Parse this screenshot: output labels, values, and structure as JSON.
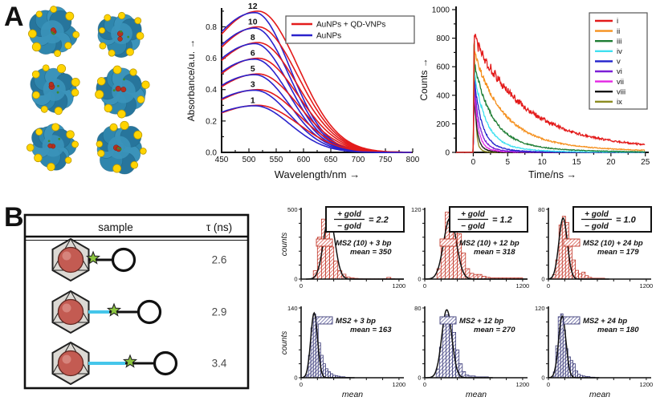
{
  "panels": {
    "a": "A",
    "b": "B"
  },
  "chart_data": [
    {
      "id": "absorbance",
      "type": "line",
      "title": "",
      "xlabel": "Wavelength/nm →",
      "ylabel": "Absorbance/a.u. →",
      "xlim": [
        450,
        800
      ],
      "ylim": [
        0,
        0.92
      ],
      "xticks": [
        450,
        500,
        550,
        600,
        650,
        700,
        750,
        800
      ],
      "yticks": [
        0,
        0.2,
        0.4,
        0.6,
        0.8
      ],
      "ytick_labels": [
        "0.0",
        "0.2",
        "0.4",
        "0.6",
        "0.8"
      ],
      "legend_position": "top-right",
      "legend": [
        {
          "label": "AuNPs + QD-VNPs",
          "color": "#e31b1b"
        },
        {
          "label": "AuNPs",
          "color": "#2a22cc"
        }
      ],
      "peak_wavelength": 515,
      "pairs": [
        {
          "label": "12",
          "peak_absorbance": 0.9
        },
        {
          "label": "10",
          "peak_absorbance": 0.8
        },
        {
          "label": "8",
          "peak_absorbance": 0.7
        },
        {
          "label": "6",
          "peak_absorbance": 0.6
        },
        {
          "label": "5",
          "peak_absorbance": 0.5
        },
        {
          "label": "3",
          "peak_absorbance": 0.4
        },
        {
          "label": "1",
          "peak_absorbance": 0.3
        }
      ]
    },
    {
      "id": "decay",
      "type": "line",
      "title": "",
      "xlabel": "Time/ns →",
      "ylabel": "Counts →",
      "xlim": [
        -2.5,
        25
      ],
      "ylim": [
        0,
        1000
      ],
      "xticks": [
        0,
        5,
        10,
        15,
        20,
        25
      ],
      "yticks": [
        0,
        200,
        400,
        600,
        800,
        1000
      ],
      "legend_position": "right",
      "series": [
        {
          "name": "i",
          "color": "#e31a1a",
          "peak_counts": 810,
          "tau_ns": 6.8
        },
        {
          "name": "ii",
          "color": "#f5901e",
          "peak_counts": 700,
          "tau_ns": 4.0
        },
        {
          "name": "iii",
          "color": "#1d7d33",
          "peak_counts": 635,
          "tau_ns": 2.5
        },
        {
          "name": "iv",
          "color": "#3fe0f0",
          "peak_counts": 575,
          "tau_ns": 1.6
        },
        {
          "name": "v",
          "color": "#2222cc",
          "peak_counts": 525,
          "tau_ns": 1.05
        },
        {
          "name": "vi",
          "color": "#7b1fd6",
          "peak_counts": 485,
          "tau_ns": 0.75
        },
        {
          "name": "vii",
          "color": "#e326e3",
          "peak_counts": 450,
          "tau_ns": 0.55
        },
        {
          "name": "viii",
          "color": "#151515",
          "peak_counts": 425,
          "tau_ns": 0.4
        },
        {
          "name": "ix",
          "color": "#8b8b1f",
          "peak_counts": 1000,
          "tau_ns": 0.16
        }
      ]
    },
    {
      "id": "hist-ms2-10-3bp",
      "type": "histogram",
      "label": "MS2 (10) + 3 bp",
      "mean_label": "mean = 350",
      "ratio": {
        "numerator": "+ gold",
        "denominator": "− gold",
        "value": "= 2.2"
      },
      "color": "#d6554a",
      "edge": "#c13a2c",
      "ylabel": "counts",
      "xlabel": "",
      "ymax": 500,
      "xlim": [
        0,
        1260
      ],
      "xtick_step": 200,
      "xtick_labels": [
        "0",
        "1200"
      ],
      "bin_start": 150,
      "bin_width": 50,
      "bin_counts": [
        60,
        300,
        430,
        420,
        230,
        130,
        60,
        35,
        15,
        8,
        5,
        3,
        2,
        2,
        2,
        2,
        2,
        3,
        12,
        3,
        0
      ],
      "fit": {
        "amp": 450,
        "mu": 345,
        "sigma": 70
      }
    },
    {
      "id": "hist-ms2-10-12bp",
      "type": "histogram",
      "label": "MS2 (10) + 12 bp",
      "mean_label": "mean = 318",
      "ratio": {
        "numerator": "+ gold",
        "denominator": "− gold",
        "value": "= 1.2"
      },
      "color": "#d6554a",
      "edge": "#c13a2c",
      "ylabel": "",
      "xlabel": "",
      "ymax": 120,
      "xlim": [
        0,
        1260
      ],
      "xtick_step": 200,
      "xtick_labels": [
        "0",
        "1200"
      ],
      "bin_start": 100,
      "bin_width": 50,
      "bin_counts": [
        0,
        18,
        60,
        115,
        95,
        88,
        78,
        45,
        18,
        10,
        8,
        8,
        5,
        3,
        2,
        2,
        2,
        2,
        2,
        2,
        2,
        2
      ],
      "fit": {
        "amp": 105,
        "mu": 310,
        "sigma": 78
      }
    },
    {
      "id": "hist-ms2-10-24bp",
      "type": "histogram",
      "label": "MS2 (10) + 24 bp",
      "mean_label": "mean = 179",
      "ratio": {
        "numerator": "+ gold",
        "denominator": "− gold",
        "value": "= 1.0"
      },
      "color": "#d6554a",
      "edge": "#c13a2c",
      "ylabel": "",
      "xlabel": "",
      "ymax": 80,
      "xlim": [
        0,
        1260
      ],
      "xtick_step": 200,
      "xtick_labels": [
        "0",
        "1200"
      ],
      "bin_start": 50,
      "bin_width": 40,
      "bin_counts": [
        5,
        22,
        62,
        72,
        65,
        40,
        22,
        10,
        6,
        8,
        4,
        2,
        1,
        1,
        1,
        1
      ],
      "fit": {
        "amp": 70,
        "mu": 180,
        "sigma": 52
      }
    },
    {
      "id": "hist-ms2-3bp",
      "type": "histogram",
      "label": "MS2 + 3 bp",
      "mean_label": "mean = 163",
      "ratio": null,
      "color": "#555596",
      "edge": "#3d3d78",
      "ylabel": "counts",
      "xlabel": "mean",
      "ymax": 140,
      "xlim": [
        0,
        1260
      ],
      "xtick_step": 200,
      "xtick_labels": [
        "0",
        "1200"
      ],
      "bin_start": 60,
      "bin_width": 30,
      "bin_counts": [
        6,
        45,
        100,
        128,
        112,
        70,
        45,
        28,
        18,
        12,
        8,
        5,
        4,
        3,
        2,
        2,
        1,
        1
      ],
      "fit": {
        "amp": 130,
        "mu": 160,
        "sigma": 42
      }
    },
    {
      "id": "hist-ms2-12bp",
      "type": "histogram",
      "label": "MS2 + 12 bp",
      "mean_label": "mean = 270",
      "ratio": null,
      "color": "#555596",
      "edge": "#3d3d78",
      "ylabel": "",
      "xlabel": "mean",
      "ymax": 80,
      "xlim": [
        0,
        1260
      ],
      "xtick_step": 200,
      "xtick_labels": [
        "0",
        "1200"
      ],
      "bin_start": 100,
      "bin_width": 40,
      "bin_counts": [
        0,
        10,
        35,
        62,
        72,
        70,
        52,
        32,
        16,
        7,
        3,
        2,
        2,
        1,
        1,
        1,
        1
      ],
      "fit": {
        "amp": 78,
        "mu": 270,
        "sigma": 62
      }
    },
    {
      "id": "hist-ms2-24bp",
      "type": "histogram",
      "label": "MS2 + 24 bp",
      "mean_label": "mean = 180",
      "ratio": null,
      "color": "#555596",
      "edge": "#3d3d78",
      "ylabel": "",
      "xlabel": "mean",
      "ymax": 120,
      "xlim": [
        0,
        1260
      ],
      "xtick_step": 200,
      "xtick_labels": [
        "0",
        "1200"
      ],
      "bin_start": 60,
      "bin_width": 30,
      "bin_counts": [
        10,
        55,
        105,
        110,
        82,
        50,
        36,
        30,
        24,
        12,
        6,
        4,
        3,
        2,
        2,
        1,
        1
      ],
      "fit": {
        "amp": 106,
        "mu": 170,
        "sigma": 45
      }
    }
  ],
  "sample_table": {
    "col_sample": "sample",
    "col_tau": "τ (ns)",
    "rows": [
      {
        "tau": "2.6",
        "dna_variant": "short"
      },
      {
        "tau": "2.9",
        "dna_variant": "medium"
      },
      {
        "tau": "3.4",
        "dna_variant": "long"
      }
    ]
  },
  "structures": {
    "count": 6,
    "body_color": "#2f86ad",
    "body_shade": "#27759c",
    "body_light": "#3b93ba",
    "body_edge": "#1c5e7d",
    "dot_color": "#ffd400",
    "dot_edge": "#bb9a00",
    "core_color": "#b5301f",
    "speck_color": "#3e8c2a"
  },
  "icon_colors": {
    "capsid_fill": "#dcd9d4",
    "capsid_edge": "#222222",
    "sphere_fill": "#c35b52",
    "sphere_edge": "#5f2620",
    "dna_color": "#45c6ea",
    "star_fill": "#8cc63f",
    "loop_edge": "#111111"
  }
}
